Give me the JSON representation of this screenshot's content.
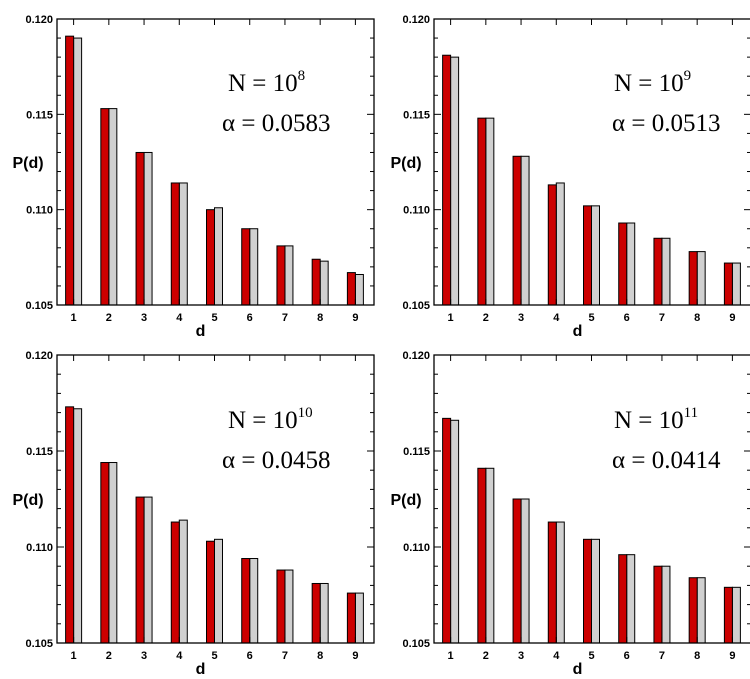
{
  "chart_data": [
    {
      "type": "bar",
      "xlabel": "d",
      "ylabel": "P(d)",
      "ylim": [
        0.105,
        0.12
      ],
      "yticks": [
        "0.105",
        "0.110",
        "0.115",
        "0.120"
      ],
      "categories": [
        "1",
        "2",
        "3",
        "4",
        "5",
        "6",
        "7",
        "8",
        "9"
      ],
      "series": [
        {
          "values": [
            0.1191,
            0.1153,
            0.113,
            0.1114,
            0.11,
            0.109,
            0.1081,
            0.1074,
            0.1067
          ]
        },
        {
          "values": [
            0.119,
            0.1153,
            0.113,
            0.1114,
            0.1101,
            0.109,
            0.1081,
            0.1073,
            0.1066
          ]
        }
      ],
      "annotation": {
        "n_base": "N = 10",
        "n_exp": "8",
        "alpha": "α = 0.0583"
      }
    },
    {
      "type": "bar",
      "xlabel": "d",
      "ylabel": "P(d)",
      "ylim": [
        0.105,
        0.12
      ],
      "yticks": [
        "0.105",
        "0.110",
        "0.115",
        "0.120"
      ],
      "categories": [
        "1",
        "2",
        "3",
        "4",
        "5",
        "6",
        "7",
        "8",
        "9"
      ],
      "series": [
        {
          "values": [
            0.1181,
            0.1148,
            0.1128,
            0.1113,
            0.1102,
            0.1093,
            0.1085,
            0.1078,
            0.1072
          ]
        },
        {
          "values": [
            0.118,
            0.1148,
            0.1128,
            0.1114,
            0.1102,
            0.1093,
            0.1085,
            0.1078,
            0.1072
          ]
        }
      ],
      "annotation": {
        "n_base": "N = 10",
        "n_exp": "9",
        "alpha": "α = 0.0513"
      }
    },
    {
      "type": "bar",
      "xlabel": "d",
      "ylabel": "P(d)",
      "ylim": [
        0.105,
        0.12
      ],
      "yticks": [
        "0.105",
        "0.110",
        "0.115",
        "0.120"
      ],
      "categories": [
        "1",
        "2",
        "3",
        "4",
        "5",
        "6",
        "7",
        "8",
        "9"
      ],
      "series": [
        {
          "values": [
            0.1173,
            0.1144,
            0.1126,
            0.1113,
            0.1103,
            0.1094,
            0.1088,
            0.1081,
            0.1076
          ]
        },
        {
          "values": [
            0.1172,
            0.1144,
            0.1126,
            0.1114,
            0.1104,
            0.1094,
            0.1088,
            0.1081,
            0.1076
          ]
        }
      ],
      "annotation": {
        "n_base": "N = 10",
        "n_exp": "10",
        "alpha": "α = 0.0458"
      }
    },
    {
      "type": "bar",
      "xlabel": "d",
      "ylabel": "P(d)",
      "ylim": [
        0.105,
        0.12
      ],
      "yticks": [
        "0.105",
        "0.110",
        "0.115",
        "0.120"
      ],
      "categories": [
        "1",
        "2",
        "3",
        "4",
        "5",
        "6",
        "7",
        "8",
        "9"
      ],
      "series": [
        {
          "values": [
            0.1167,
            0.1141,
            0.1125,
            0.1113,
            0.1104,
            0.1096,
            0.109,
            0.1084,
            0.1079
          ]
        },
        {
          "values": [
            0.1166,
            0.1141,
            0.1125,
            0.1113,
            0.1104,
            0.1096,
            0.109,
            0.1084,
            0.1079
          ]
        }
      ],
      "annotation": {
        "n_base": "N = 10",
        "n_exp": "11",
        "alpha": "α = 0.0414"
      }
    }
  ],
  "colors": {
    "series_1": "#cc0000",
    "series_2": "#d0d0d0"
  }
}
